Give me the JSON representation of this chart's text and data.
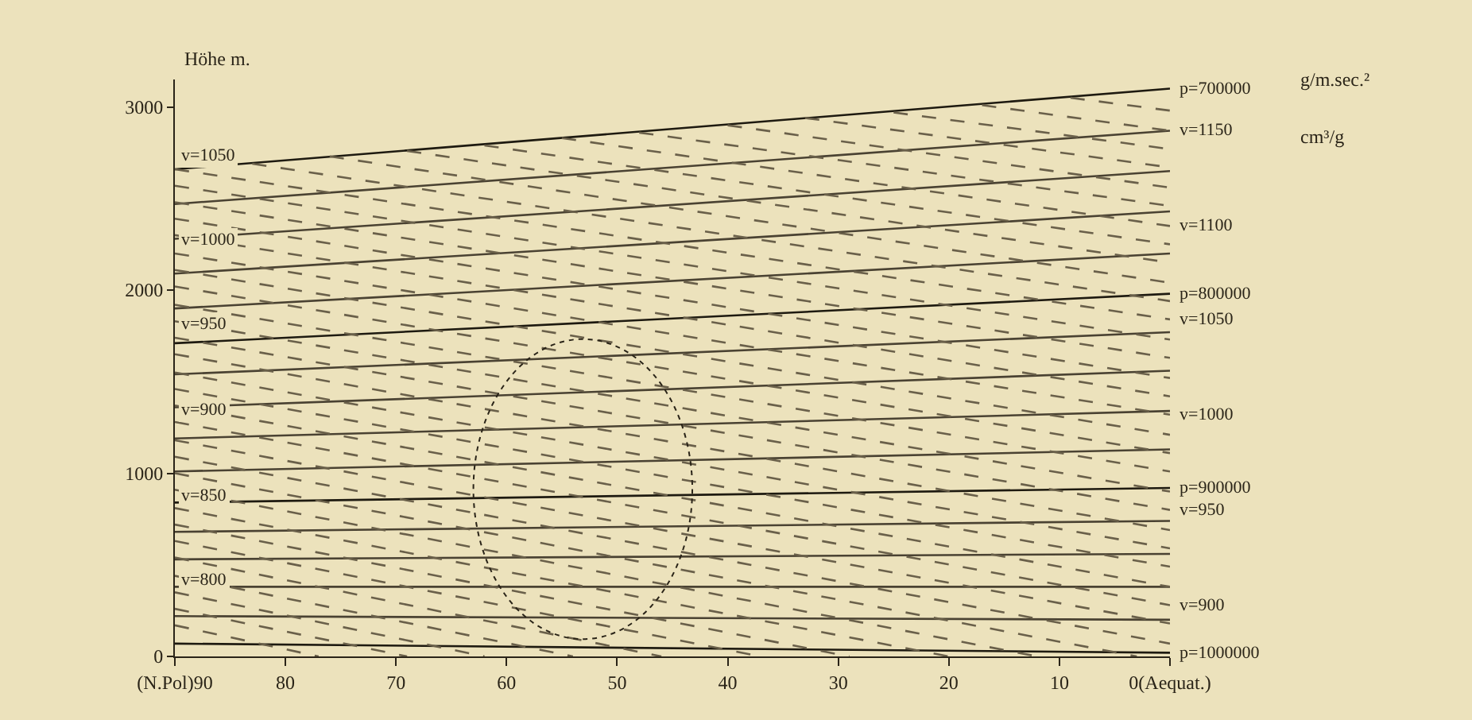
{
  "chart_data": {
    "type": "line",
    "ylabel": "Höhe m.",
    "xlim": [
      90,
      0
    ],
    "ylim": [
      0,
      3150
    ],
    "xticks": [
      {
        "value": 90,
        "label": "(N.Pol)90"
      },
      80,
      70,
      60,
      50,
      40,
      30,
      20,
      10,
      {
        "value": 0,
        "label": "0(Aequat.)"
      }
    ],
    "yticks": [
      0,
      1000,
      2000,
      3000
    ],
    "grid": false,
    "series": [
      {
        "color": "#1e1a10",
        "line_style": "solid",
        "x": [
          90,
          0
        ],
        "values": [
          2660,
          3100
        ],
        "name": "p=700000"
      },
      {
        "color": "#4a4232",
        "line_style": "solid",
        "x": [
          90,
          0
        ],
        "values": [
          2470,
          2870
        ]
      },
      {
        "color": "#4a4232",
        "line_style": "solid",
        "x": [
          90,
          0
        ],
        "values": [
          2280,
          2650
        ]
      },
      {
        "color": "#4a4232",
        "line_style": "solid",
        "x": [
          90,
          0
        ],
        "values": [
          2090,
          2430
        ]
      },
      {
        "color": "#4a4232",
        "line_style": "solid",
        "x": [
          90,
          0
        ],
        "values": [
          1900,
          2200
        ]
      },
      {
        "color": "#1e1a10",
        "line_style": "solid",
        "x": [
          90,
          0
        ],
        "values": [
          1710,
          1980
        ],
        "name": "p=800000"
      },
      {
        "color": "#4a4232",
        "line_style": "solid",
        "x": [
          90,
          0
        ],
        "values": [
          1540,
          1770
        ]
      },
      {
        "color": "#4a4232",
        "line_style": "solid",
        "x": [
          90,
          0
        ],
        "values": [
          1360,
          1560
        ]
      },
      {
        "color": "#4a4232",
        "line_style": "solid",
        "x": [
          90,
          0
        ],
        "values": [
          1190,
          1340
        ]
      },
      {
        "color": "#4a4232",
        "line_style": "solid",
        "x": [
          90,
          0
        ],
        "values": [
          1010,
          1130
        ]
      },
      {
        "color": "#1e1a10",
        "line_style": "solid",
        "x": [
          90,
          0
        ],
        "values": [
          840,
          920
        ],
        "name": "p=900000"
      },
      {
        "color": "#4a4232",
        "line_style": "solid",
        "x": [
          90,
          0
        ],
        "values": [
          680,
          740
        ]
      },
      {
        "color": "#4a4232",
        "line_style": "solid",
        "x": [
          90,
          0
        ],
        "values": [
          530,
          560
        ]
      },
      {
        "color": "#4a4232",
        "line_style": "solid",
        "x": [
          90,
          0
        ],
        "values": [
          380,
          380
        ]
      },
      {
        "color": "#4a4232",
        "line_style": "solid",
        "x": [
          90,
          0
        ],
        "values": [
          220,
          200
        ]
      },
      {
        "color": "#1e1a10",
        "line_style": "solid",
        "x": [
          90,
          0
        ],
        "values": [
          70,
          20
        ],
        "name": "p=1000000"
      },
      {
        "color": "#6a604a",
        "line_style": "dashed",
        "x": [
          90,
          77
        ],
        "values": [
          170,
          0
        ]
      },
      {
        "color": "#6a604a",
        "line_style": "dashed",
        "x": [
          90,
          69
        ],
        "values": [
          260,
          0
        ]
      },
      {
        "color": "#6a604a",
        "line_style": "dashed",
        "x": [
          90,
          62
        ],
        "values": [
          350,
          0
        ],
        "name": "v=800"
      },
      {
        "color": "#6a604a",
        "line_style": "dashed",
        "x": [
          90,
          54
        ],
        "values": [
          440,
          0
        ]
      },
      {
        "color": "#6a604a",
        "line_style": "dashed",
        "x": [
          90,
          46
        ],
        "values": [
          540,
          0
        ]
      },
      {
        "color": "#6a604a",
        "line_style": "dashed",
        "x": [
          90,
          37
        ],
        "values": [
          630,
          0
        ]
      },
      {
        "color": "#6a604a",
        "line_style": "dashed",
        "x": [
          90,
          29
        ],
        "values": [
          720,
          0
        ]
      },
      {
        "color": "#6a604a",
        "line_style": "dashed",
        "x": [
          90,
          20
        ],
        "values": [
          810,
          0
        ],
        "name": "v=850"
      },
      {
        "color": "#6a604a",
        "line_style": "dashed",
        "x": [
          90,
          12
        ],
        "values": [
          910,
          0
        ]
      },
      {
        "color": "#6a604a",
        "line_style": "dashed",
        "x": [
          90,
          3
        ],
        "values": [
          1000,
          0
        ]
      },
      {
        "color": "#6a604a",
        "line_style": "dashed",
        "x": [
          90,
          0
        ],
        "values": [
          1090,
          70
        ]
      },
      {
        "color": "#6a604a",
        "line_style": "dashed",
        "x": [
          90,
          0
        ],
        "values": [
          1180,
          180
        ]
      },
      {
        "color": "#6a604a",
        "line_style": "dashed",
        "x": [
          90,
          0
        ],
        "values": [
          1280,
          280
        ],
        "name": "v=900"
      },
      {
        "color": "#6a604a",
        "line_style": "dashed",
        "x": [
          90,
          0
        ],
        "values": [
          1370,
          380
        ]
      },
      {
        "color": "#6a604a",
        "line_style": "dashed",
        "x": [
          90,
          0
        ],
        "values": [
          1460,
          490
        ]
      },
      {
        "color": "#6a604a",
        "line_style": "dashed",
        "x": [
          90,
          0
        ],
        "values": [
          1550,
          590
        ]
      },
      {
        "color": "#6a604a",
        "line_style": "dashed",
        "x": [
          90,
          0
        ],
        "values": [
          1650,
          690
        ]
      },
      {
        "color": "#6a604a",
        "line_style": "dashed",
        "x": [
          90,
          0
        ],
        "values": [
          1740,
          800
        ],
        "name": "v=950"
      },
      {
        "color": "#6a604a",
        "line_style": "dashed",
        "x": [
          90,
          0
        ],
        "values": [
          1830,
          900
        ]
      },
      {
        "color": "#6a604a",
        "line_style": "dashed",
        "x": [
          90,
          0
        ],
        "values": [
          1920,
          1010
        ]
      },
      {
        "color": "#6a604a",
        "line_style": "dashed",
        "x": [
          90,
          0
        ],
        "values": [
          2020,
          1110
        ]
      },
      {
        "color": "#6a604a",
        "line_style": "dashed",
        "x": [
          90,
          0
        ],
        "values": [
          2110,
          1210
        ]
      },
      {
        "color": "#6a604a",
        "line_style": "dashed",
        "x": [
          90,
          0
        ],
        "values": [
          2200,
          1320
        ],
        "name": "v=1000"
      },
      {
        "color": "#6a604a",
        "line_style": "dashed",
        "x": [
          90,
          0
        ],
        "values": [
          2300,
          1420
        ]
      },
      {
        "color": "#6a604a",
        "line_style": "dashed",
        "x": [
          90,
          0
        ],
        "values": [
          2390,
          1520
        ]
      },
      {
        "color": "#6a604a",
        "line_style": "dashed",
        "x": [
          90,
          0
        ],
        "values": [
          2480,
          1630
        ]
      },
      {
        "color": "#6a604a",
        "line_style": "dashed",
        "x": [
          90,
          0
        ],
        "values": [
          2570,
          1730
        ]
      },
      {
        "color": "#6a604a",
        "line_style": "dashed",
        "x": [
          90,
          0
        ],
        "values": [
          2660,
          1840
        ],
        "name": "v=1050"
      },
      {
        "color": "#6a604a",
        "line_style": "dashed",
        "x": [
          83,
          0
        ],
        "values": [
          2690,
          1940
        ]
      },
      {
        "color": "#6a604a",
        "line_style": "dashed",
        "x": [
          76,
          0
        ],
        "values": [
          2730,
          2040
        ]
      },
      {
        "color": "#6a604a",
        "line_style": "dashed",
        "x": [
          69,
          0
        ],
        "values": [
          2760,
          2150
        ]
      },
      {
        "color": "#6a604a",
        "line_style": "dashed",
        "x": [
          62,
          0
        ],
        "values": [
          2790,
          2250
        ]
      },
      {
        "color": "#6a604a",
        "line_style": "dashed",
        "x": [
          55,
          0
        ],
        "values": [
          2830,
          2350
        ],
        "name": "v=1100"
      },
      {
        "color": "#6a604a",
        "line_style": "dashed",
        "x": [
          48,
          0
        ],
        "values": [
          2860,
          2460
        ]
      },
      {
        "color": "#6a604a",
        "line_style": "dashed",
        "x": [
          40,
          0
        ],
        "values": [
          2900,
          2560
        ]
      },
      {
        "color": "#6a604a",
        "line_style": "dashed",
        "x": [
          33,
          0
        ],
        "values": [
          2940,
          2670
        ]
      },
      {
        "color": "#6a604a",
        "line_style": "dashed",
        "x": [
          25,
          0
        ],
        "values": [
          2970,
          2770
        ]
      },
      {
        "color": "#6a604a",
        "line_style": "dashed",
        "x": [
          17,
          0
        ],
        "values": [
          3010,
          2870
        ],
        "name": "v=1150"
      },
      {
        "color": "#6a604a",
        "line_style": "dashed",
        "x": [
          9,
          0
        ],
        "values": [
          3050,
          2980
        ]
      }
    ],
    "annotations": [
      "g/m.sec.²",
      "cm³/g"
    ]
  }
}
